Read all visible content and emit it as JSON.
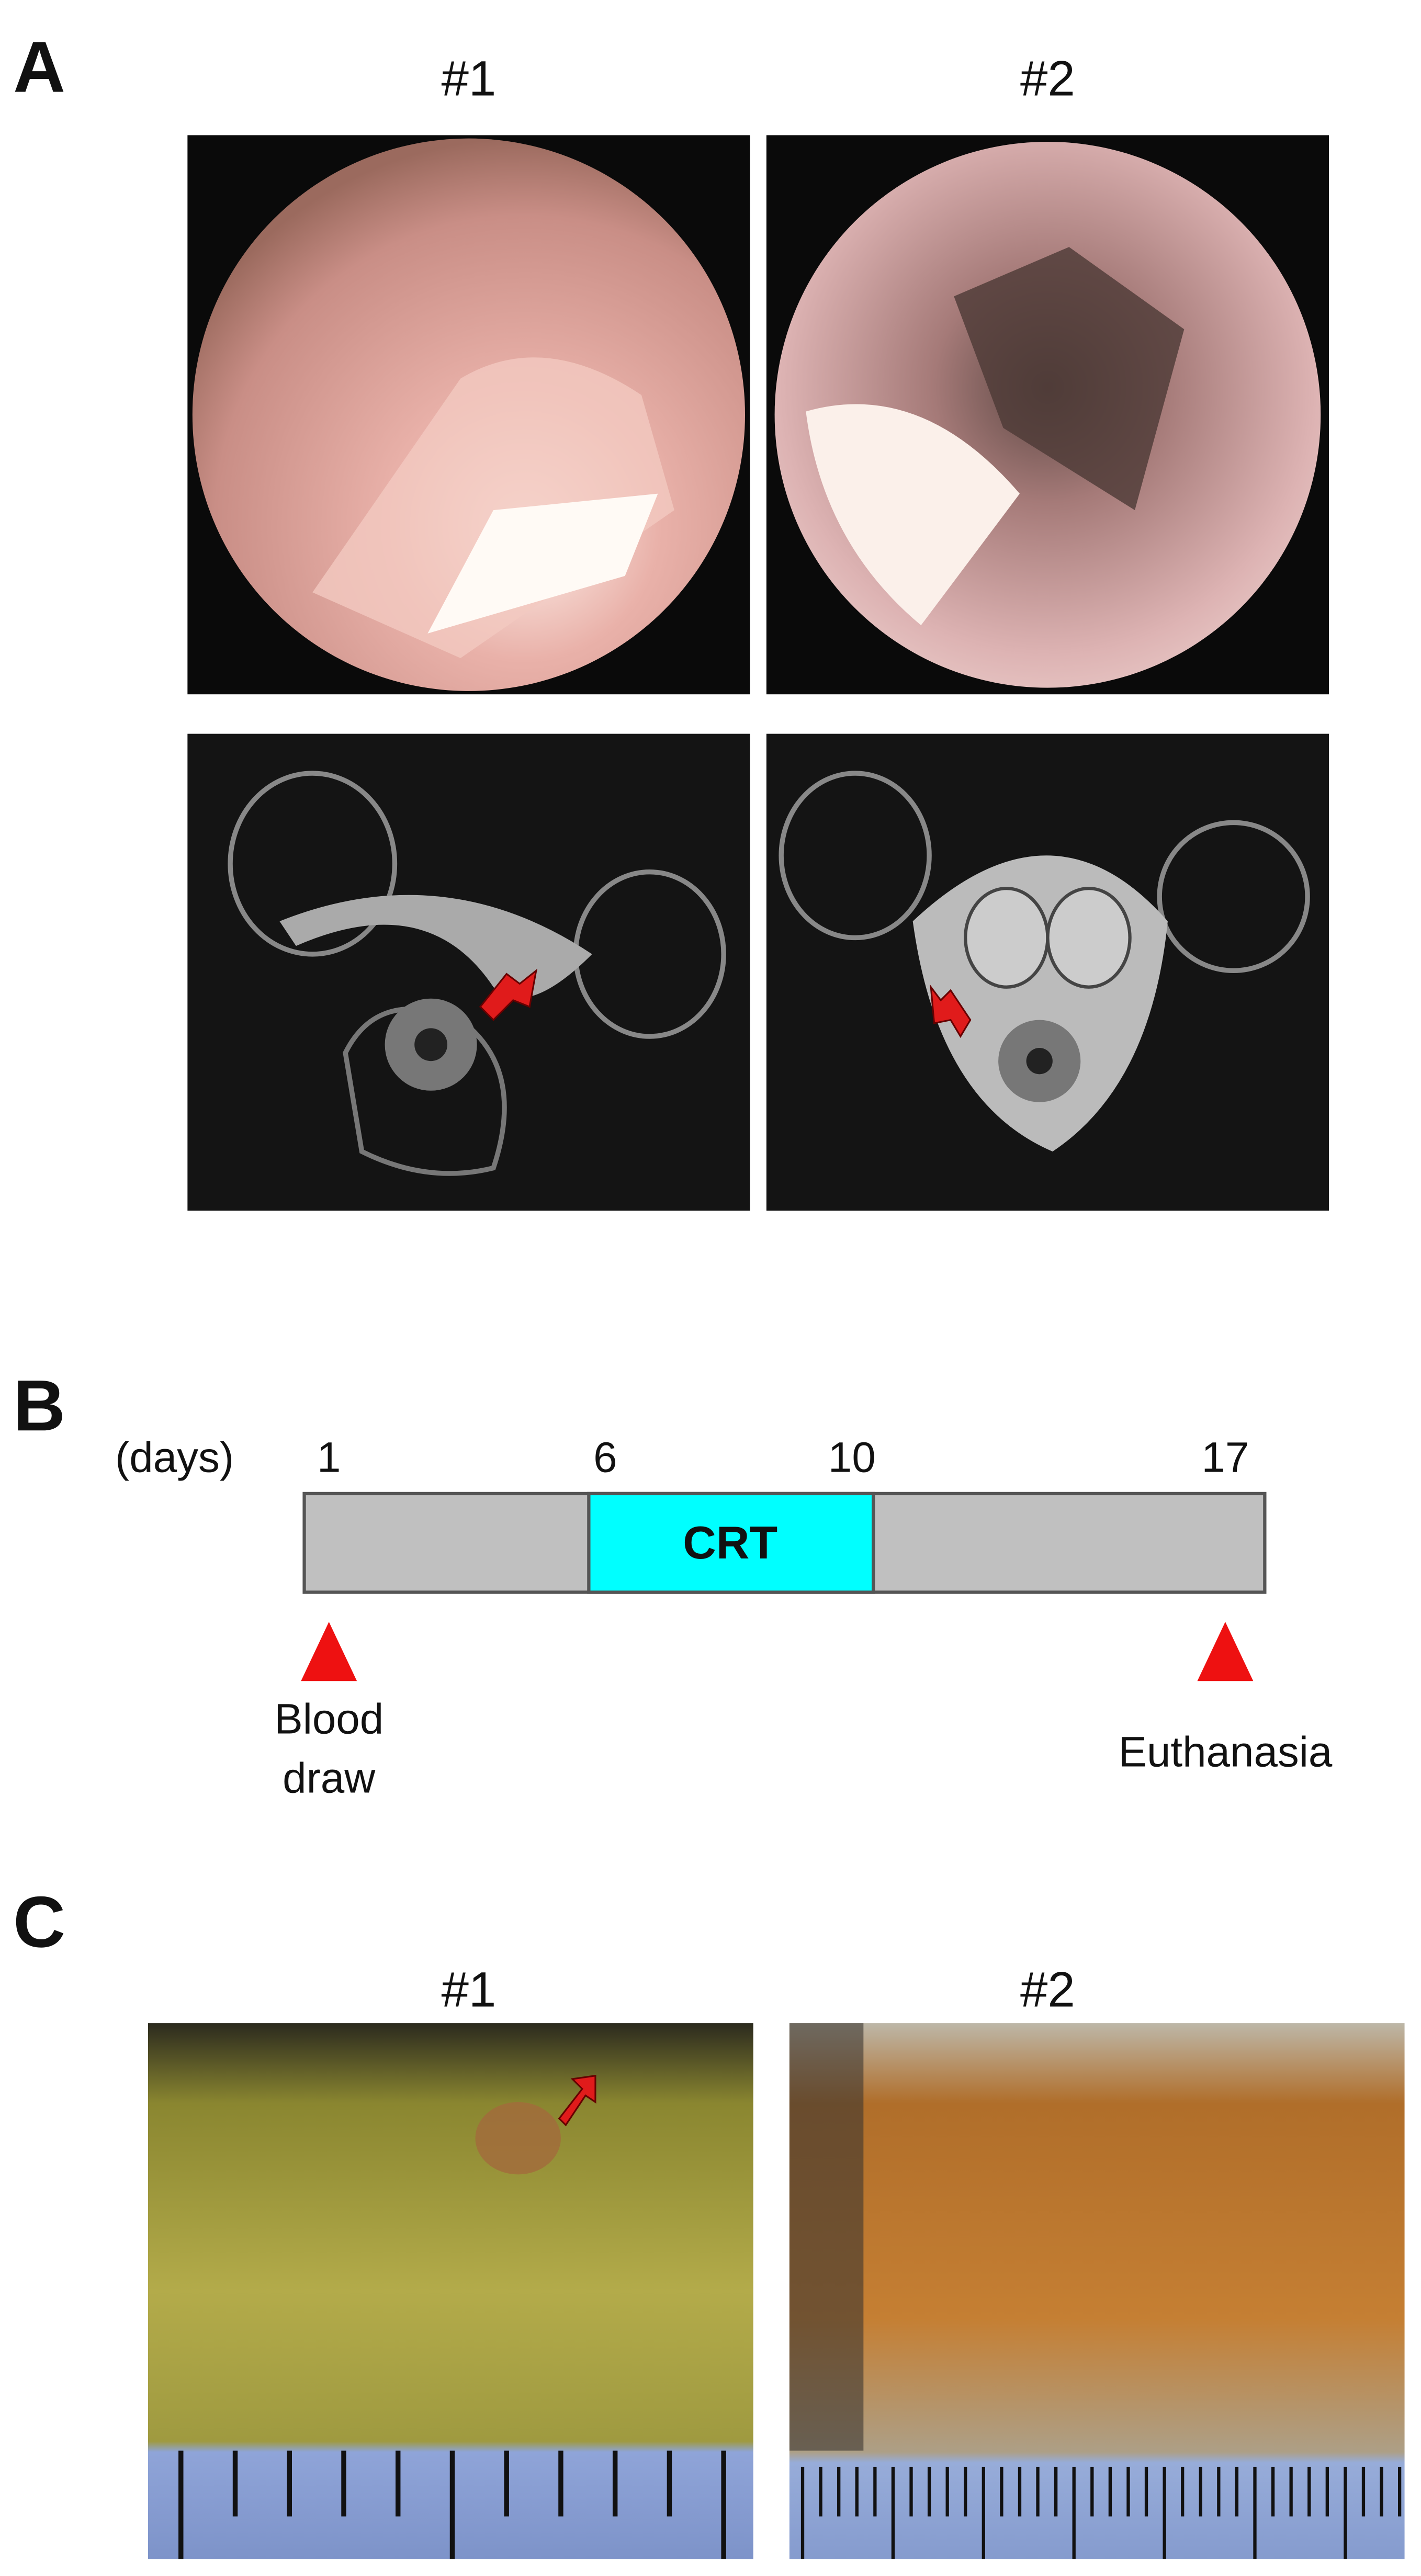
{
  "panel_a": {
    "label": "A",
    "columns": [
      "#1",
      "#2"
    ]
  },
  "panel_b": {
    "label": "B",
    "unit_label": "(days)",
    "days": [
      "1",
      "6",
      "10",
      "17"
    ],
    "treatment": "CRT",
    "events": [
      {
        "lines": [
          "Blood",
          "draw"
        ]
      },
      {
        "lines": [
          "Euthanasia"
        ]
      }
    ]
  },
  "panel_c": {
    "label": "C",
    "columns": [
      "#1",
      "#2"
    ]
  }
}
